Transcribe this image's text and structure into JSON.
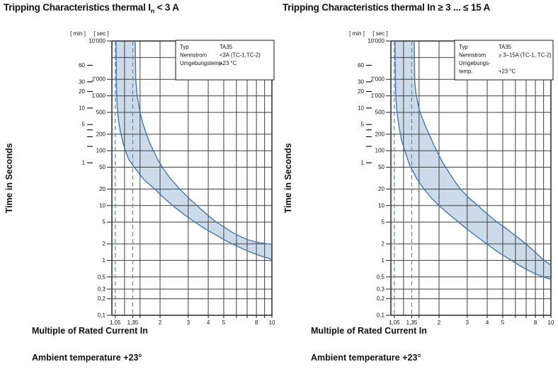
{
  "colors": {
    "band_fill": "#ccdaea",
    "curve_stroke": "#4377ae",
    "dashed_line": "#5588bf",
    "grid": "#3f3f3f",
    "axis": "#1a1a1a",
    "text": "#111111",
    "background": "#ffffff"
  },
  "chart_data": [
    {
      "type": "area",
      "title": {
        "prefix": "Tripping Characteristics thermal I",
        "sub": "n",
        "suffix": " < 3 A"
      },
      "ylabel": "Time in Seconds",
      "xlabel": "Multiple of Rated Current In",
      "footer": "Ambient temperature +23°",
      "unit_header": {
        "min": "[ min ]",
        "sec": "[ sec ]"
      },
      "x_axis": {
        "scale": "log",
        "range": [
          1,
          10
        ],
        "ticks": [
          {
            "v": 1.05,
            "label": "1,05"
          },
          {
            "v": 1.35,
            "label": "1,35"
          },
          {
            "v": 1.5,
            "label": ""
          },
          {
            "v": 2,
            "label": "2"
          },
          {
            "v": 3,
            "label": "3"
          },
          {
            "v": 4,
            "label": "4"
          },
          {
            "v": 5,
            "label": "5"
          },
          {
            "v": 6,
            "label": ""
          },
          {
            "v": 7,
            "label": ""
          },
          {
            "v": 8,
            "label": "8"
          },
          {
            "v": 9,
            "label": ""
          },
          {
            "v": 10,
            "label": "10"
          }
        ],
        "gridlines": [
          1.2,
          1.5,
          2,
          3,
          4,
          5,
          6,
          7,
          8,
          9,
          10
        ],
        "dashed_lines": [
          1.05,
          1.35
        ]
      },
      "y_axis": {
        "scale": "log",
        "range": [
          0.1,
          10000
        ],
        "sec_labels": [
          {
            "v": 10000,
            "label": "10'000"
          },
          {
            "v": 2000,
            "label": "2'000"
          },
          {
            "v": 1000,
            "label": "1'000"
          },
          {
            "v": 500,
            "label": "500"
          },
          {
            "v": 200,
            "label": "200"
          },
          {
            "v": 100,
            "label": "100"
          },
          {
            "v": 50,
            "label": "50"
          },
          {
            "v": 20,
            "label": "20"
          },
          {
            "v": 10,
            "label": "10"
          },
          {
            "v": 5,
            "label": "5"
          },
          {
            "v": 2,
            "label": "2"
          },
          {
            "v": 1,
            "label": "1"
          },
          {
            "v": 0.5,
            "label": "0,5"
          },
          {
            "v": 0.3,
            "label": "0,3"
          },
          {
            "v": 0.2,
            "label": "0,2"
          },
          {
            "v": 0.1,
            "label": "0,1"
          }
        ],
        "gridlines": [
          5000,
          2000,
          1000,
          500,
          200,
          100,
          50,
          20,
          10,
          5,
          2,
          1,
          0.5,
          0.3,
          0.2,
          0.1
        ],
        "min_ticks": [
          {
            "min": 60,
            "label": "60"
          },
          {
            "min": 30,
            "label": "30"
          },
          {
            "min": 20,
            "label": "20"
          },
          {
            "min": 10,
            "label": "10"
          },
          {
            "min": 5,
            "label": "5"
          },
          {
            "min": 4,
            "label": ""
          },
          {
            "min": 3,
            "label": ""
          },
          {
            "min": 2,
            "label": ""
          },
          {
            "min": 1,
            "label": "1"
          }
        ]
      },
      "legend": {
        "rows": [
          {
            "label": "Typ",
            "value": "TA35"
          },
          {
            "label": "Nennstrom",
            "value": "<3A (TC-1,TC-2)"
          },
          {
            "label": "Umgebungstemp.",
            "value": "+23 °C"
          }
        ]
      },
      "series": [
        {
          "name": "min_trip_curve",
          "points": [
            [
              1.06,
              10000
            ],
            [
              1.065,
              3000
            ],
            [
              1.07,
              1200
            ],
            [
              1.08,
              600
            ],
            [
              1.1,
              350
            ],
            [
              1.13,
              220
            ],
            [
              1.19,
              120
            ],
            [
              1.27,
              70
            ],
            [
              1.38,
              50
            ],
            [
              1.58,
              30
            ],
            [
              1.85,
              20
            ],
            [
              2.1,
              14
            ],
            [
              2.4,
              10
            ],
            [
              2.8,
              7
            ],
            [
              3.2,
              5.3
            ],
            [
              3.7,
              4
            ],
            [
              4.3,
              3.1
            ],
            [
              5.0,
              2.4
            ],
            [
              5.66,
              2.0
            ],
            [
              6.5,
              1.65
            ],
            [
              7.5,
              1.38
            ],
            [
              8.7,
              1.18
            ],
            [
              10,
              1.05
            ]
          ]
        },
        {
          "name": "max_trip_curve",
          "points": [
            [
              1.4,
              10000
            ],
            [
              1.405,
              4000
            ],
            [
              1.41,
              2000
            ],
            [
              1.44,
              1000
            ],
            [
              1.5,
              500
            ],
            [
              1.56,
              320
            ],
            [
              1.63,
              215
            ],
            [
              1.72,
              140
            ],
            [
              1.82,
              100
            ],
            [
              1.93,
              70
            ],
            [
              2.07,
              50
            ],
            [
              2.3,
              32
            ],
            [
              2.65,
              20
            ],
            [
              3.0,
              14
            ],
            [
              3.4,
              10
            ],
            [
              3.9,
              7
            ],
            [
              4.4,
              5.2
            ],
            [
              5.0,
              4.1
            ],
            [
              5.6,
              3.3
            ],
            [
              6.3,
              2.75
            ],
            [
              7.0,
              2.4
            ],
            [
              8.0,
              2.15
            ],
            [
              9.0,
              2.04
            ],
            [
              10,
              1.97
            ]
          ]
        }
      ]
    },
    {
      "type": "area",
      "title": {
        "prefix": "Tripping Characteristics thermal In ≥ 3 ... ≤ 15 A",
        "sub": "",
        "suffix": ""
      },
      "ylabel": "Time in Seconds",
      "xlabel": "Multiple of Rated Current In",
      "footer": "Ambient temperature +23°",
      "unit_header": {
        "min": "[ min ]",
        "sec": "[ sec ]"
      },
      "x_axis": {
        "scale": "log",
        "range": [
          1,
          10
        ],
        "ticks": [
          {
            "v": 1.05,
            "label": "1,05"
          },
          {
            "v": 1.35,
            "label": "1,35"
          },
          {
            "v": 1.5,
            "label": ""
          },
          {
            "v": 2,
            "label": "2"
          },
          {
            "v": 3,
            "label": "3"
          },
          {
            "v": 4,
            "label": "4"
          },
          {
            "v": 5,
            "label": "5"
          },
          {
            "v": 6,
            "label": ""
          },
          {
            "v": 7,
            "label": ""
          },
          {
            "v": 8,
            "label": "8"
          },
          {
            "v": 9,
            "label": ""
          },
          {
            "v": 10,
            "label": "10"
          }
        ],
        "gridlines": [
          1.2,
          1.5,
          2,
          3,
          4,
          5,
          6,
          7,
          8,
          9,
          10
        ],
        "dashed_lines": [
          1.05,
          1.35
        ]
      },
      "y_axis": {
        "scale": "log",
        "range": [
          0.1,
          10000
        ],
        "sec_labels": [
          {
            "v": 10000,
            "label": "10'000"
          },
          {
            "v": 2000,
            "label": "2'000"
          },
          {
            "v": 1000,
            "label": "1'000"
          },
          {
            "v": 500,
            "label": "500"
          },
          {
            "v": 200,
            "label": "200"
          },
          {
            "v": 100,
            "label": "100"
          },
          {
            "v": 50,
            "label": "50"
          },
          {
            "v": 20,
            "label": "20"
          },
          {
            "v": 10,
            "label": "10"
          },
          {
            "v": 5,
            "label": "5"
          },
          {
            "v": 2,
            "label": "2"
          },
          {
            "v": 1,
            "label": "1"
          },
          {
            "v": 0.5,
            "label": "0,5"
          },
          {
            "v": 0.3,
            "label": "0,3"
          },
          {
            "v": 0.2,
            "label": "0,2"
          },
          {
            "v": 0.1,
            "label": "0,1"
          }
        ],
        "gridlines": [
          5000,
          2000,
          1000,
          500,
          200,
          100,
          50,
          20,
          10,
          5,
          2,
          1,
          0.5,
          0.3,
          0.2,
          0.1
        ],
        "min_ticks": [
          {
            "min": 60,
            "label": "60"
          },
          {
            "min": 30,
            "label": "30"
          },
          {
            "min": 20,
            "label": "20"
          },
          {
            "min": 10,
            "label": "10"
          },
          {
            "min": 5,
            "label": "5"
          },
          {
            "min": 4,
            "label": ""
          },
          {
            "min": 3,
            "label": ""
          },
          {
            "min": 2,
            "label": ""
          },
          {
            "min": 1,
            "label": "1"
          }
        ]
      },
      "legend": {
        "rows": [
          {
            "label": "Typ",
            "value": "TA35"
          },
          {
            "label": "Nennstrom",
            "value": "≥ 3–15A (TC-1, TC-2)"
          },
          {
            "label": "Umgebungs-",
            "value": ""
          },
          {
            "label": "temp.",
            "value": "+23 °C"
          }
        ]
      },
      "series": [
        {
          "name": "min_trip_curve",
          "points": [
            [
              1.06,
              10000
            ],
            [
              1.065,
              3000
            ],
            [
              1.07,
              1300
            ],
            [
              1.08,
              700
            ],
            [
              1.1,
              420
            ],
            [
              1.13,
              250
            ],
            [
              1.17,
              150
            ],
            [
              1.23,
              95
            ],
            [
              1.29,
              62
            ],
            [
              1.33,
              50
            ],
            [
              1.45,
              31
            ],
            [
              1.61,
              20
            ],
            [
              1.8,
              13.5
            ],
            [
              2.0,
              10
            ],
            [
              2.3,
              7
            ],
            [
              2.6,
              5.2
            ],
            [
              3.0,
              3.7
            ],
            [
              3.3,
              3.0
            ],
            [
              3.97,
              2.0
            ],
            [
              4.7,
              1.4
            ],
            [
              5.66,
              1.0
            ],
            [
              6.4,
              0.8
            ],
            [
              7.2,
              0.66
            ],
            [
              8.0,
              0.57
            ],
            [
              9.0,
              0.5
            ],
            [
              10,
              0.45
            ]
          ]
        },
        {
          "name": "max_trip_curve",
          "points": [
            [
              1.4,
              10000
            ],
            [
              1.405,
              4000
            ],
            [
              1.41,
              1800
            ],
            [
              1.44,
              1000
            ],
            [
              1.52,
              500
            ],
            [
              1.63,
              300
            ],
            [
              1.72,
              210
            ],
            [
              1.85,
              130
            ],
            [
              1.95,
              95
            ],
            [
              2.1,
              62
            ],
            [
              2.25,
              45
            ],
            [
              2.5,
              28
            ],
            [
              2.72,
              20
            ],
            [
              3.1,
              13.5
            ],
            [
              3.5,
              10
            ],
            [
              4.0,
              7
            ],
            [
              4.6,
              5
            ],
            [
              5.2,
              3.9
            ],
            [
              5.8,
              3.05
            ],
            [
              6.4,
              2.45
            ],
            [
              6.9,
              2.05
            ],
            [
              7.8,
              1.5
            ],
            [
              8.9,
              1.05
            ],
            [
              9.4,
              0.93
            ],
            [
              10,
              0.82
            ]
          ]
        }
      ]
    }
  ]
}
